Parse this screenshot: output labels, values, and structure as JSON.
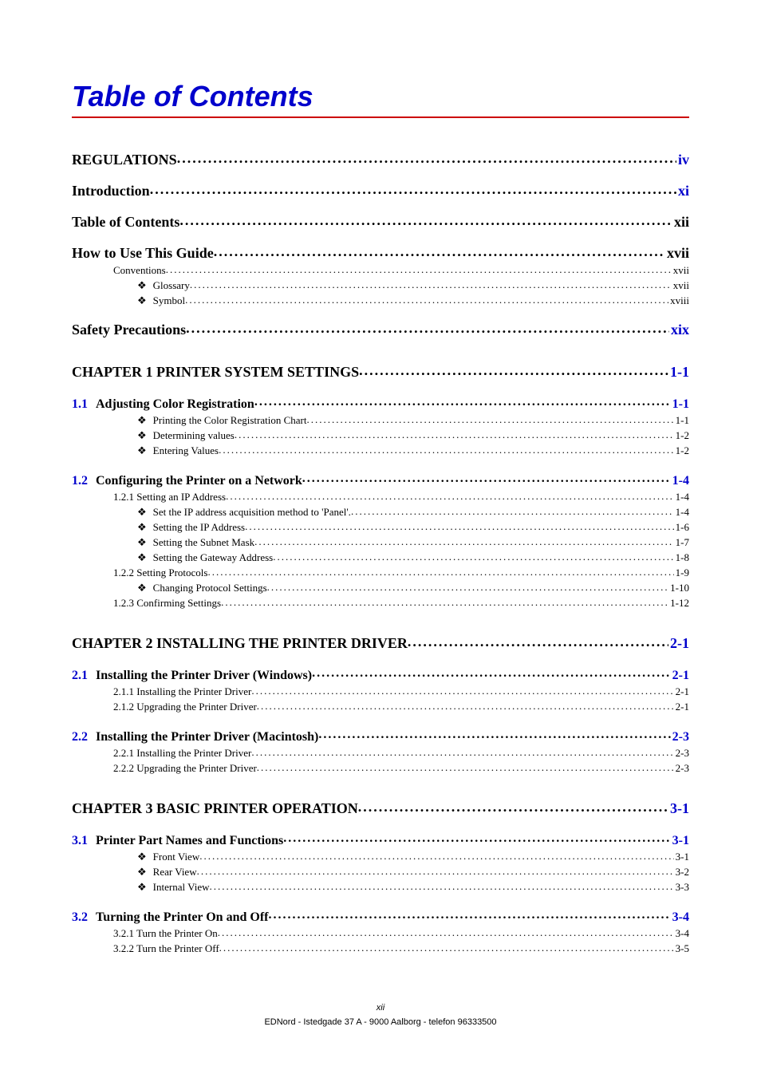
{
  "title": "Table of Contents",
  "colors": {
    "title": "#0000cc",
    "rule": "#cc0000",
    "link": "#0000cc",
    "text": "#000000",
    "bg": "#ffffff"
  },
  "fonts": {
    "title_family": "Arial",
    "title_size_pt": 28,
    "body_family": "Times New Roman",
    "h0_size_pt": 14,
    "h1_size_pt": 12,
    "h2_size_pt": 10
  },
  "entries": [
    {
      "lvl": 0,
      "label": "REGULATIONS",
      "page": "iv"
    },
    {
      "lvl": 0,
      "label": "Introduction",
      "page": "xi"
    },
    {
      "lvl": 0,
      "label": "Table of Contents",
      "page": "xii",
      "page_color": "#000000"
    },
    {
      "lvl": 0,
      "label": "How to Use This Guide",
      "page": "xvii",
      "page_color": "#000000"
    },
    {
      "lvl": 2,
      "label": "Conventions",
      "page": "xvii"
    },
    {
      "lvl": 3,
      "bullet": "❖",
      "label": "Glossary",
      "page": "xvii"
    },
    {
      "lvl": 3,
      "bullet": "❖",
      "label": "Symbol",
      "page": "xviii"
    },
    {
      "lvl": 0,
      "label": "Safety Precautions",
      "page": "xix"
    },
    {
      "lvl": "0b",
      "label": "CHAPTER 1 PRINTER SYSTEM SETTINGS",
      "page": "1-1"
    },
    {
      "lvl": 1,
      "sec": "1.1",
      "label": "Adjusting Color Registration",
      "page": "1-1"
    },
    {
      "lvl": 3,
      "bullet": "❖",
      "label": "Printing the Color Registration Chart",
      "page": "1-1"
    },
    {
      "lvl": 3,
      "bullet": "❖",
      "label": "Determining values",
      "page": "1-2"
    },
    {
      "lvl": 3,
      "bullet": "❖",
      "label": "Entering Values",
      "page": "1-2"
    },
    {
      "lvl": 1,
      "sec": "1.2",
      "label": "Configuring the Printer on a Network",
      "page": "1-4"
    },
    {
      "lvl": 2,
      "label": "1.2.1  Setting an IP Address",
      "page": "1-4"
    },
    {
      "lvl": 3,
      "bullet": "❖",
      "label": "Set the IP address acquisition method to 'Panel'.",
      "page": "1-4"
    },
    {
      "lvl": 3,
      "bullet": "❖",
      "label": "Setting the IP Address",
      "page": "1-6"
    },
    {
      "lvl": 3,
      "bullet": "❖",
      "label": "Setting the Subnet Mask",
      "page": "1-7"
    },
    {
      "lvl": 3,
      "bullet": "❖",
      "label": "Setting the Gateway Address",
      "page": "1-8"
    },
    {
      "lvl": 2,
      "label": "1.2.2  Setting Protocols",
      "page": "1-9"
    },
    {
      "lvl": 3,
      "bullet": "❖",
      "label": "Changing Protocol Settings",
      "page": "1-10"
    },
    {
      "lvl": 2,
      "label": "1.2.3  Confirming Settings",
      "page": "1-12"
    },
    {
      "lvl": "0b",
      "label": "CHAPTER 2 INSTALLING THE PRINTER DRIVER",
      "page": "2-1"
    },
    {
      "lvl": 1,
      "sec": "2.1",
      "label": "Installing the Printer Driver (Windows)",
      "page": "2-1"
    },
    {
      "lvl": 2,
      "label": "2.1.1  Installing the Printer Driver",
      "page": "2-1"
    },
    {
      "lvl": 2,
      "label": "2.1.2  Upgrading the Printer Driver",
      "page": "2-1"
    },
    {
      "lvl": 1,
      "sec": "2.2",
      "label": "Installing the Printer Driver (Macintosh)",
      "page": "2-3"
    },
    {
      "lvl": 2,
      "label": "2.2.1  Installing the Printer Driver",
      "page": "2-3"
    },
    {
      "lvl": 2,
      "label": "2.2.2  Upgrading the Printer Driver",
      "page": "2-3"
    },
    {
      "lvl": "0b",
      "label": "CHAPTER 3 BASIC PRINTER OPERATION",
      "page": "3-1"
    },
    {
      "lvl": 1,
      "sec": "3.1",
      "label": "Printer Part Names and Functions",
      "page": "3-1"
    },
    {
      "lvl": 3,
      "bullet": "❖",
      "label": "Front View",
      "page": "3-1"
    },
    {
      "lvl": 3,
      "bullet": "❖",
      "label": "Rear View",
      "page": "3-2"
    },
    {
      "lvl": 3,
      "bullet": "❖",
      "label": "Internal View",
      "page": "3-3"
    },
    {
      "lvl": 1,
      "sec": "3.2",
      "label": "Turning the Printer On and Off",
      "page": "3-4"
    },
    {
      "lvl": 2,
      "label": "3.2.1  Turn the Printer On",
      "page": "3-4"
    },
    {
      "lvl": 2,
      "label": "3.2.2  Turn the Printer Off",
      "page": "3-5"
    }
  ],
  "footer": {
    "page_number": "xii",
    "line": "EDNord - Istedgade 37 A - 9000 Aalborg - telefon 96333500"
  }
}
